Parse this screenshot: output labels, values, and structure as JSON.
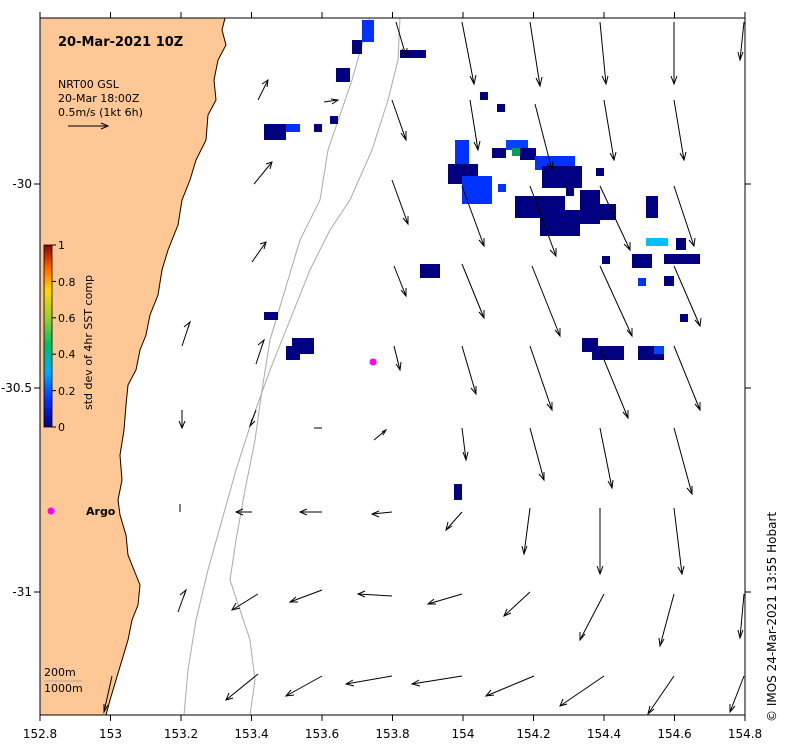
{
  "map": {
    "title": "20-Mar-2021 10Z",
    "legend_lines": [
      "NRT00 GSL",
      "20-Mar 18:00Z",
      "0.5m/s (1kt 6h)"
    ],
    "colorbar": {
      "label": "std dev of 4hr SST comp",
      "ticks": [
        "1",
        "0.8",
        "0.6",
        "0.4",
        "0.2",
        "0"
      ],
      "colors": [
        "#8b0000",
        "#ff0000",
        "#ff8c00",
        "#ffd700",
        "#adff2f",
        "#00c000",
        "#00bfff",
        "#0050ff",
        "#000080"
      ]
    },
    "x_ticks": [
      "152.8",
      "153",
      "153.2",
      "153.4",
      "153.6",
      "153.8",
      "154",
      "154.2",
      "154.4",
      "154.6",
      "154.8"
    ],
    "y_ticks": [
      "-30",
      "-30.5",
      "-31"
    ],
    "argo_label": "Argo",
    "contour_labels": [
      "200m",
      "1000m"
    ],
    "credit": "© IMOS 24-Mar-2021 13:55 Hobart",
    "colors": {
      "land": "#fdc896",
      "argo": "#ff00ff",
      "sst_low": "#000080",
      "contour": "#a9a9a9"
    }
  }
}
